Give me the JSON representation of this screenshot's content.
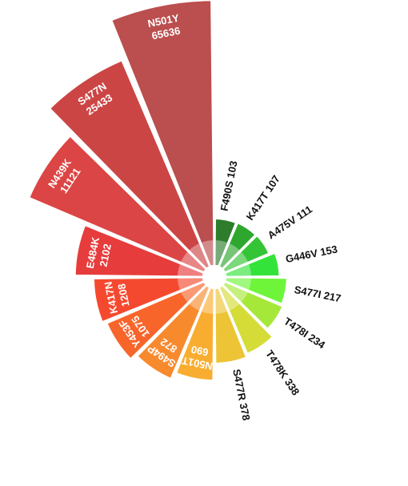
{
  "chart_data": {
    "type": "polar-bar",
    "title": "",
    "series": [
      {
        "label": "N501Y",
        "value": 65636,
        "color": "#bb4e4e"
      },
      {
        "label": "S477N",
        "value": 25433,
        "color": "#cc4545"
      },
      {
        "label": "N439K",
        "value": 11121,
        "color": "#dc4545"
      },
      {
        "label": "E484K",
        "value": 2102,
        "color": "#e73c3c"
      },
      {
        "label": "K417N",
        "value": 1208,
        "color": "#f5492f"
      },
      {
        "label": "Y453F",
        "value": 1075,
        "color": "#f7652b"
      },
      {
        "label": "S494P",
        "value": 872,
        "color": "#f88a2e"
      },
      {
        "label": "N501T",
        "value": 690,
        "color": "#f9ad30"
      },
      {
        "label": "S477R",
        "value": 378,
        "color": "#edc435"
      },
      {
        "label": "T478K",
        "value": 338,
        "color": "#d5dc38"
      },
      {
        "label": "T478I",
        "value": 234,
        "color": "#a6e83a"
      },
      {
        "label": "S477I",
        "value": 217,
        "color": "#6ef53a"
      },
      {
        "label": "G446V",
        "value": 153,
        "color": "#34e33a"
      },
      {
        "label": "A475V",
        "value": 111,
        "color": "#35c435"
      },
      {
        "label": "K417T",
        "value": 107,
        "color": "#2ea72e"
      },
      {
        "label": "F490S",
        "value": 103,
        "color": "#2d7d2d"
      }
    ]
  }
}
